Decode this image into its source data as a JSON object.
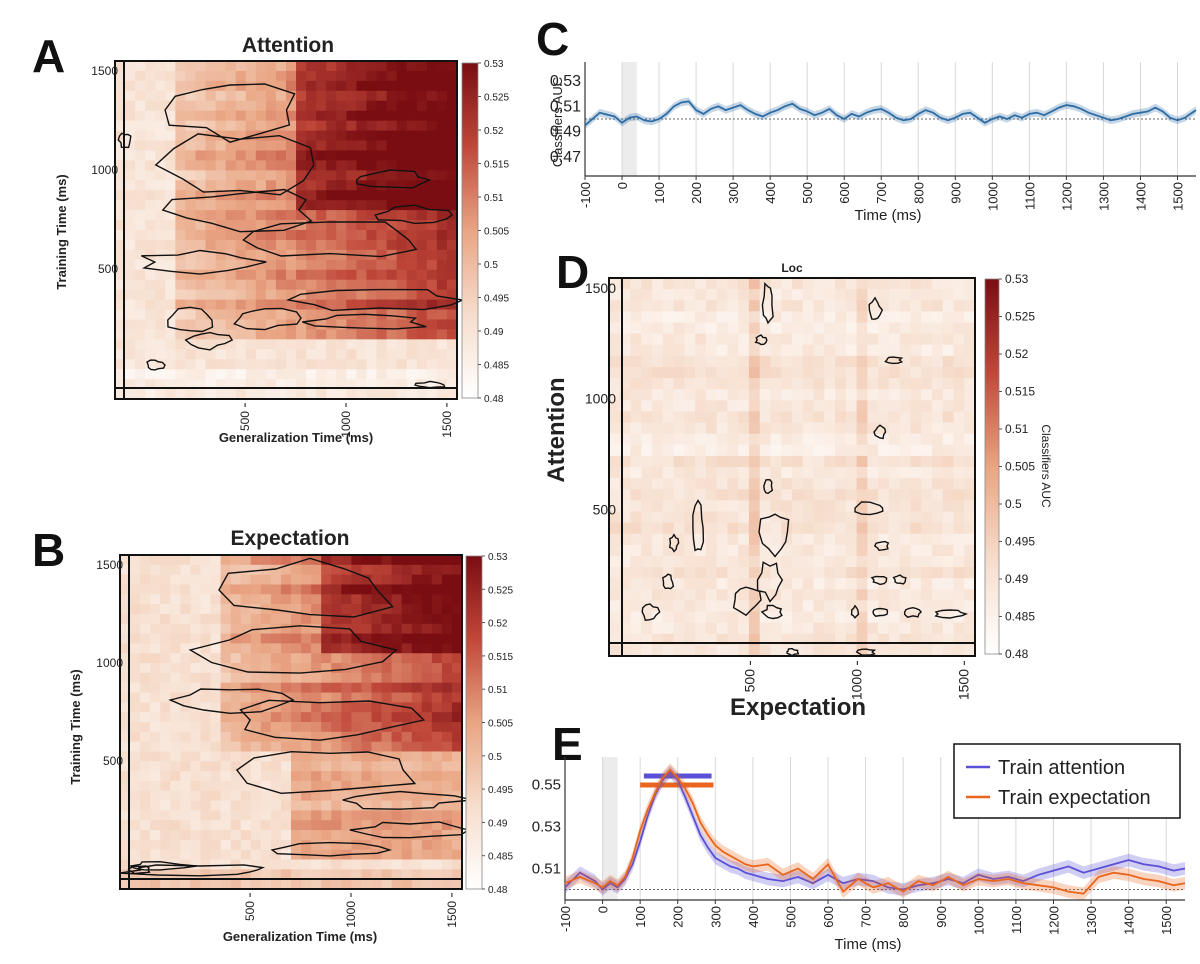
{
  "chart_data": [
    {
      "panel": "A",
      "type": "heatmap",
      "title": "Attention",
      "xlabel": "Generalization Time (ms)",
      "ylabel": "Training Time (ms)",
      "xticks": [
        "500",
        "1000",
        "1500"
      ],
      "yticks": [
        "500",
        "1000",
        "1500"
      ],
      "xlim": [
        -100,
        1550
      ],
      "ylim": [
        -100,
        1550
      ],
      "colorbar": {
        "min": 0.48,
        "max": 0.53,
        "ticks": [
          "0.53",
          "0.525",
          "0.52",
          "0.515",
          "0.51",
          "0.505",
          "0.5",
          "0.495",
          "0.49",
          "0.485",
          "0.48"
        ]
      }
    },
    {
      "panel": "B",
      "type": "heatmap",
      "title": "Expectation",
      "xlabel": "Generalization Time (ms)",
      "ylabel": "Training Time (ms)",
      "xticks": [
        "500",
        "1000",
        "1500"
      ],
      "yticks": [
        "500",
        "1000",
        "1500"
      ],
      "xlim": [
        -100,
        1550
      ],
      "ylim": [
        -100,
        1550
      ],
      "colorbar": {
        "min": 0.48,
        "max": 0.53,
        "ticks": [
          "0.53",
          "0.525",
          "0.52",
          "0.515",
          "0.51",
          "0.505",
          "0.5",
          "0.495",
          "0.49",
          "0.485",
          "0.48"
        ]
      }
    },
    {
      "panel": "C",
      "type": "line",
      "xlabel": "Time (ms)",
      "ylabel": "Classifiers AUC",
      "xlim": [
        -100,
        1550
      ],
      "ylim": [
        0.455,
        0.545
      ],
      "xticks": [
        "-100",
        "0",
        "100",
        "200",
        "300",
        "400",
        "500",
        "600",
        "700",
        "800",
        "900",
        "1000",
        "1100",
        "1200",
        "1300",
        "1400",
        "1500"
      ],
      "yticks": [
        "0.53",
        "0.51",
        "0.49",
        "0.47"
      ],
      "chance": 0.5,
      "series": [
        {
          "color": "#2e6da4",
          "x": [
            -100,
            -60,
            -20,
            0,
            20,
            40,
            60,
            80,
            100,
            120,
            140,
            160,
            180,
            200,
            220,
            240,
            260,
            280,
            300,
            320,
            340,
            360,
            380,
            400,
            420,
            440,
            460,
            480,
            500,
            520,
            540,
            560,
            580,
            600,
            620,
            640,
            660,
            680,
            700,
            720,
            740,
            760,
            780,
            800,
            820,
            840,
            860,
            880,
            900,
            920,
            940,
            960,
            980,
            1000,
            1020,
            1040,
            1060,
            1080,
            1100,
            1120,
            1140,
            1160,
            1180,
            1200,
            1220,
            1240,
            1260,
            1280,
            1300,
            1320,
            1340,
            1360,
            1380,
            1400,
            1420,
            1440,
            1460,
            1480,
            1500,
            1520,
            1550
          ],
          "y": [
            0.495,
            0.505,
            0.502,
            0.497,
            0.501,
            0.502,
            0.499,
            0.498,
            0.5,
            0.504,
            0.51,
            0.513,
            0.514,
            0.507,
            0.504,
            0.508,
            0.51,
            0.507,
            0.509,
            0.511,
            0.507,
            0.504,
            0.502,
            0.505,
            0.507,
            0.51,
            0.512,
            0.508,
            0.506,
            0.503,
            0.505,
            0.508,
            0.503,
            0.5,
            0.504,
            0.502,
            0.505,
            0.507,
            0.508,
            0.505,
            0.501,
            0.499,
            0.5,
            0.504,
            0.507,
            0.505,
            0.501,
            0.499,
            0.501,
            0.504,
            0.505,
            0.501,
            0.497,
            0.5,
            0.502,
            0.5,
            0.503,
            0.501,
            0.504,
            0.505,
            0.503,
            0.506,
            0.509,
            0.511,
            0.51,
            0.508,
            0.505,
            0.503,
            0.501,
            0.499,
            0.5,
            0.502,
            0.504,
            0.505,
            0.506,
            0.509,
            0.506,
            0.501,
            0.499,
            0.501,
            0.507
          ]
        }
      ]
    },
    {
      "panel": "D",
      "type": "heatmap",
      "title": "Loc",
      "xlabel": "Expectation",
      "ylabel": "Attention",
      "xticks": [
        "500",
        "1000",
        "1500"
      ],
      "yticks": [
        "500",
        "1000",
        "1500"
      ],
      "xlim": [
        -100,
        1550
      ],
      "ylim": [
        -100,
        1550
      ],
      "colorbar": {
        "label": "Classifiers AUC",
        "min": 0.48,
        "max": 0.53,
        "ticks": [
          "0.53",
          "0.525",
          "0.52",
          "0.515",
          "0.51",
          "0.505",
          "0.5",
          "0.495",
          "0.49",
          "0.485",
          "0.48"
        ]
      }
    },
    {
      "panel": "E",
      "type": "line",
      "xlabel": "Time (ms)",
      "xlim": [
        -100,
        1550
      ],
      "ylim": [
        0.495,
        0.563
      ],
      "xticks": [
        "-100",
        "0",
        "100",
        "200",
        "300",
        "400",
        "500",
        "600",
        "700",
        "800",
        "900",
        "1000",
        "1100",
        "1200",
        "1300",
        "1400",
        "1500"
      ],
      "yticks": [
        "0.55",
        "0.53",
        "0.51"
      ],
      "chance": 0.5,
      "legend": "top-right",
      "significance_bars": [
        {
          "series": "Train attention",
          "range": [
            110,
            290
          ]
        },
        {
          "series": "Train expectation",
          "range": [
            100,
            295
          ]
        }
      ],
      "series": [
        {
          "name": "Train attention",
          "color": "#5b4fd8",
          "x": [
            -100,
            -60,
            -20,
            0,
            20,
            40,
            60,
            80,
            100,
            120,
            140,
            160,
            180,
            200,
            220,
            240,
            260,
            280,
            300,
            320,
            340,
            360,
            380,
            400,
            440,
            480,
            520,
            560,
            600,
            640,
            680,
            720,
            760,
            800,
            840,
            880,
            920,
            960,
            1000,
            1040,
            1080,
            1120,
            1160,
            1200,
            1240,
            1280,
            1320,
            1360,
            1400,
            1440,
            1480,
            1520,
            1550
          ],
          "y": [
            0.501,
            0.508,
            0.504,
            0.5,
            0.503,
            0.501,
            0.505,
            0.512,
            0.523,
            0.535,
            0.545,
            0.552,
            0.556,
            0.552,
            0.544,
            0.535,
            0.526,
            0.52,
            0.515,
            0.513,
            0.511,
            0.51,
            0.508,
            0.507,
            0.505,
            0.504,
            0.506,
            0.503,
            0.507,
            0.503,
            0.505,
            0.504,
            0.501,
            0.5,
            0.502,
            0.503,
            0.505,
            0.503,
            0.507,
            0.505,
            0.506,
            0.504,
            0.507,
            0.509,
            0.511,
            0.508,
            0.51,
            0.512,
            0.514,
            0.512,
            0.511,
            0.509,
            0.51
          ]
        },
        {
          "name": "Train expectation",
          "color": "#e8661e",
          "x": [
            -100,
            -60,
            -20,
            0,
            20,
            40,
            60,
            80,
            100,
            120,
            140,
            160,
            180,
            200,
            220,
            240,
            260,
            280,
            300,
            320,
            340,
            360,
            380,
            400,
            440,
            480,
            520,
            560,
            600,
            640,
            680,
            720,
            760,
            800,
            840,
            880,
            920,
            960,
            1000,
            1040,
            1080,
            1120,
            1160,
            1200,
            1240,
            1280,
            1320,
            1360,
            1400,
            1440,
            1480,
            1520,
            1550
          ],
          "y": [
            0.503,
            0.506,
            0.503,
            0.501,
            0.504,
            0.502,
            0.506,
            0.515,
            0.528,
            0.538,
            0.546,
            0.553,
            0.557,
            0.553,
            0.548,
            0.541,
            0.532,
            0.526,
            0.521,
            0.518,
            0.516,
            0.514,
            0.512,
            0.511,
            0.512,
            0.507,
            0.51,
            0.505,
            0.512,
            0.499,
            0.505,
            0.501,
            0.503,
            0.499,
            0.504,
            0.502,
            0.506,
            0.502,
            0.505,
            0.504,
            0.505,
            0.503,
            0.502,
            0.501,
            0.499,
            0.498,
            0.506,
            0.508,
            0.507,
            0.505,
            0.504,
            0.502,
            0.503
          ]
        }
      ]
    }
  ]
}
